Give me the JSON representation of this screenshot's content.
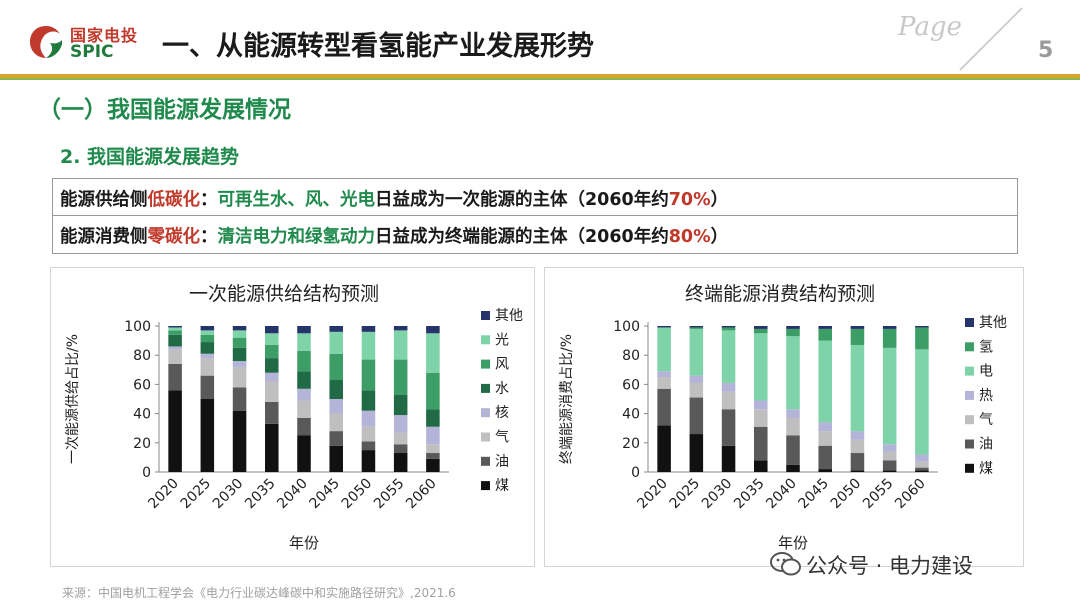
{
  "header": {
    "logo_cn": "国家电投",
    "logo_en": "SPIC",
    "title": "一、从能源转型看氢能产业发展形势",
    "page_word": "Page",
    "page_number": "5"
  },
  "section_heading": "（一）我国能源发展情况",
  "subheading": "2. 我国能源发展趋势",
  "summary_box": {
    "row1": {
      "a": "能源供给侧",
      "b": "低碳化",
      "c": "：",
      "d": "可再生水、风、光电",
      "e": "日益成为一次能源的主体（2060年约",
      "f": "70%",
      "g": "）"
    },
    "row2": {
      "a": "能源消费侧",
      "b": "零碳化",
      "c": "：",
      "d": "清洁电力和绿氢动力",
      "e": "日益成为终端能源的主体（2060年约",
      "f": "80%",
      "g": "）"
    }
  },
  "chart_data": [
    {
      "type": "bar",
      "stacked": true,
      "title": "一次能源供给结构预测",
      "xlabel": "年份",
      "ylabel": "一次能源供给占比/%",
      "ylim": [
        0,
        100
      ],
      "yticks": [
        0,
        20,
        40,
        60,
        80,
        100
      ],
      "categories": [
        "2020",
        "2025",
        "2030",
        "2035",
        "2040",
        "2045",
        "2050",
        "2055",
        "2060"
      ],
      "series": [
        {
          "name": "煤",
          "color": "#111111",
          "values": [
            56,
            50,
            42,
            33,
            25,
            18,
            15,
            13,
            9
          ]
        },
        {
          "name": "油",
          "color": "#595959",
          "values": [
            18,
            16,
            16,
            15,
            12,
            10,
            6,
            6,
            4
          ]
        },
        {
          "name": "气",
          "color": "#bfbfbf",
          "values": [
            10,
            12,
            14,
            14,
            12,
            12,
            10,
            8,
            6
          ]
        },
        {
          "name": "核",
          "color": "#b4b4d8",
          "values": [
            2,
            3,
            4,
            6,
            8,
            10,
            11,
            12,
            12
          ]
        },
        {
          "name": "水",
          "color": "#206b45",
          "values": [
            8,
            8,
            9,
            10,
            12,
            13,
            14,
            14,
            12
          ]
        },
        {
          "name": "风",
          "color": "#3c9e66",
          "values": [
            3,
            5,
            7,
            9,
            14,
            18,
            21,
            24,
            25
          ]
        },
        {
          "name": "光",
          "color": "#7fd3a8",
          "values": [
            2,
            3,
            5,
            8,
            12,
            15,
            19,
            20,
            27
          ]
        },
        {
          "name": "其他",
          "color": "#25346b",
          "values": [
            1,
            3,
            3,
            5,
            5,
            4,
            4,
            3,
            5
          ]
        }
      ]
    },
    {
      "type": "bar",
      "stacked": true,
      "title": "终端能源消费结构预测",
      "xlabel": "年份",
      "ylabel": "终端能源消费占比/%",
      "ylim": [
        0,
        100
      ],
      "yticks": [
        0,
        20,
        40,
        60,
        80,
        100
      ],
      "categories": [
        "2020",
        "2025",
        "2030",
        "2035",
        "2040",
        "2045",
        "2050",
        "2055",
        "2060"
      ],
      "series": [
        {
          "name": "煤",
          "color": "#111111",
          "values": [
            32,
            26,
            18,
            8,
            5,
            2,
            1,
            1,
            1
          ]
        },
        {
          "name": "油",
          "color": "#595959",
          "values": [
            25,
            25,
            25,
            23,
            20,
            16,
            12,
            7,
            2
          ]
        },
        {
          "name": "气",
          "color": "#bfbfbf",
          "values": [
            8,
            10,
            12,
            12,
            12,
            10,
            9,
            6,
            4
          ]
        },
        {
          "name": "热",
          "color": "#b4b4d8",
          "values": [
            4,
            5,
            6,
            6,
            6,
            6,
            6,
            5,
            5
          ]
        },
        {
          "name": "电",
          "color": "#7fd3a8",
          "values": [
            30,
            32,
            36,
            46,
            50,
            56,
            59,
            66,
            72
          ]
        },
        {
          "name": "氢",
          "color": "#3c9e66",
          "values": [
            0,
            1,
            2,
            3,
            5,
            8,
            11,
            13,
            15
          ]
        },
        {
          "name": "其他",
          "color": "#25346b",
          "values": [
            1,
            1,
            1,
            2,
            2,
            2,
            2,
            2,
            1
          ]
        }
      ]
    }
  ],
  "footer": {
    "source": "来源：中国电机工程学会《电力行业碳达峰碳中和实施路径研究》,2021.6",
    "watermark": "公众号 · 电力建设"
  }
}
